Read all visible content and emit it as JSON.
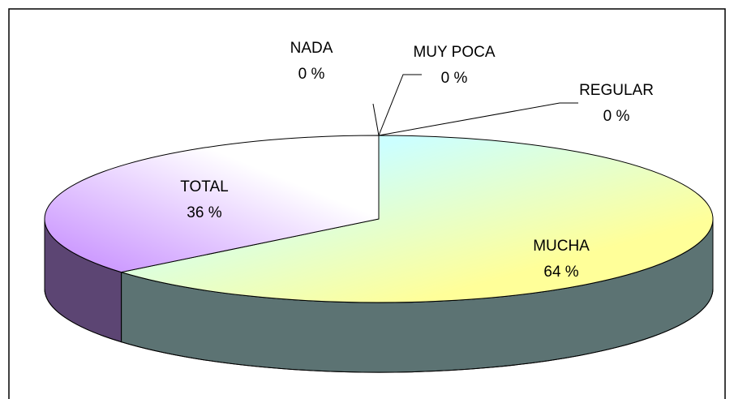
{
  "chart_data": {
    "type": "pie3d",
    "categories": [
      "NADA",
      "MUY POCA",
      "REGULAR",
      "MUCHA",
      "TOTAL"
    ],
    "values": [
      0,
      0,
      0,
      64,
      36
    ],
    "value_labels": [
      "0 %",
      "0 %",
      "0 %",
      "64 %",
      "36 %"
    ],
    "colors": [
      "#9999ff",
      "#993366",
      "#ffffcc",
      "#ccffff",
      "#cc99ff"
    ]
  }
}
